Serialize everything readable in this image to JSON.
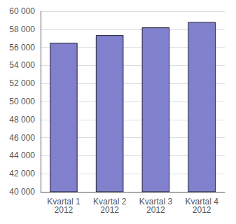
{
  "chart_data": {
    "type": "bar",
    "categories": [
      "Kvartal 1\n2012",
      "Kvartal 2\n2012",
      "Kvartal 3\n2012",
      "Kvartal 4\n2012"
    ],
    "values": [
      56500,
      57350,
      58200,
      58800
    ],
    "color": "#8080cc",
    "ylim": [
      40000,
      60000
    ],
    "yticks": [
      {
        "value": 40000,
        "label": "40 000"
      },
      {
        "value": 42000,
        "label": "42 000"
      },
      {
        "value": 44000,
        "label": "44 000"
      },
      {
        "value": 46000,
        "label": "46 000"
      },
      {
        "value": 48000,
        "label": "48 000"
      },
      {
        "value": 50000,
        "label": "50 000"
      },
      {
        "value": 52000,
        "label": "52 000"
      },
      {
        "value": 54000,
        "label": "54 000"
      },
      {
        "value": 56000,
        "label": "56 000"
      },
      {
        "value": 58000,
        "label": "58 000"
      },
      {
        "value": 60000,
        "label": "60 000"
      }
    ],
    "grid": true
  }
}
